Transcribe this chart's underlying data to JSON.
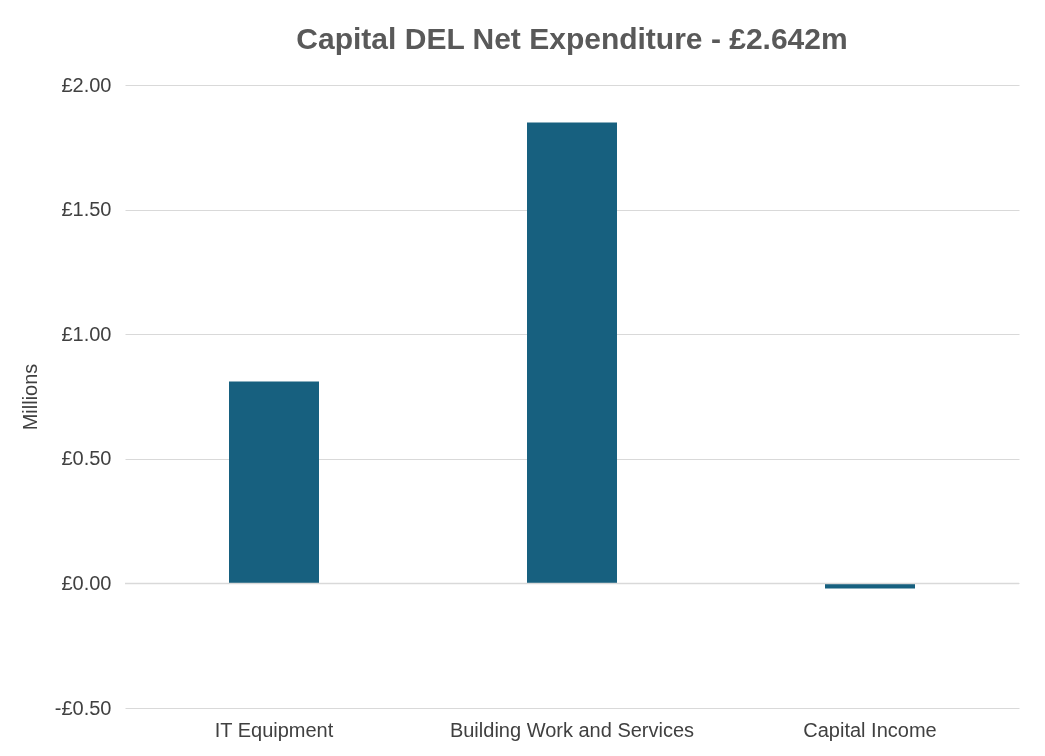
{
  "chart_data": {
    "type": "bar",
    "title": "Capital DEL Net Expenditure - £2.642m",
    "ylabel": "Millions",
    "categories": [
      "IT Equipment",
      "Building Work and Services",
      "Capital Income"
    ],
    "values": [
      0.81,
      1.85,
      -0.02
    ],
    "color": "#17607f",
    "ylim": [
      -0.5,
      2.0
    ],
    "yticks": [
      {
        "value": -0.5,
        "label": "-£0.50"
      },
      {
        "value": 0,
        "label": "£0.00"
      },
      {
        "value": 0.5,
        "label": "£0.50"
      },
      {
        "value": 1.0,
        "label": "£1.00"
      },
      {
        "value": 1.5,
        "label": "£1.50"
      },
      {
        "value": 2.0,
        "label": "£2.00"
      }
    ],
    "grid": "y"
  }
}
